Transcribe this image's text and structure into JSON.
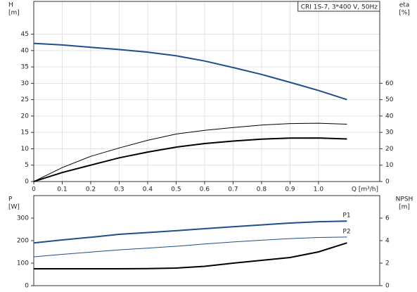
{
  "chart_data": [
    {
      "type": "line",
      "title": "CRI 1S-7, 3*400 V, 50Hz",
      "ylabel": [
        "H",
        "[m]"
      ],
      "y2label": [
        "eta",
        "[%]"
      ],
      "xlabel": "Q [m³/h]",
      "x": [
        0,
        0.1,
        0.2,
        0.3,
        0.4,
        0.5,
        0.6,
        0.7,
        0.8,
        0.9,
        1.0,
        1.1
      ],
      "xlim": [
        0,
        1.215
      ],
      "xticks": [
        0,
        0.1,
        0.2,
        0.3,
        0.4,
        0.5,
        0.6,
        0.7,
        0.8,
        0.9,
        {
          "value": 1,
          "label": "1.0"
        }
      ],
      "ylim": [
        0,
        55
      ],
      "yticks": [
        0,
        5,
        10,
        15,
        20,
        25,
        30,
        35,
        40,
        45
      ],
      "y2lim": [
        0,
        110
      ],
      "y2ticks": [
        0,
        10,
        20,
        30,
        40,
        50,
        60
      ],
      "grid": true,
      "series": [
        {
          "color": "#1f4e8c",
          "line_width": 2,
          "values": [
            42.2,
            41.7,
            41.0,
            40.3,
            39.5,
            38.4,
            36.8,
            34.8,
            32.7,
            30.3,
            27.8,
            25
          ]
        },
        {
          "color": "#000000",
          "line_width": 1,
          "axis": "y2",
          "values": [
            0,
            8.5,
            15.4,
            20.5,
            25.2,
            29,
            31.3,
            33,
            34.5,
            35.4,
            35.6,
            35
          ]
        },
        {
          "color": "#000000",
          "line_width": 2,
          "axis": "y2",
          "values": [
            0,
            5.5,
            10,
            14.5,
            18,
            21,
            23.2,
            24.7,
            25.9,
            26.5,
            26.6,
            26
          ]
        }
      ]
    },
    {
      "type": "line",
      "ylabel": [
        "P",
        "[W]"
      ],
      "y2label": [
        "NPSH",
        "[m]"
      ],
      "x": [
        0,
        0.1,
        0.2,
        0.3,
        0.4,
        0.5,
        0.6,
        0.7,
        0.8,
        0.9,
        1.0,
        1.1
      ],
      "xlim": [
        0,
        1.215
      ],
      "ylim": [
        0,
        400
      ],
      "yticks": [
        0,
        100,
        200,
        300
      ],
      "y2lim": [
        0,
        8
      ],
      "y2ticks": [
        0,
        2,
        4,
        6
      ],
      "series": [
        {
          "name": "P1",
          "color": "#1f4e8c",
          "line_width": 2,
          "values": [
            190,
            203,
            215,
            228,
            236,
            244,
            253,
            262,
            270,
            278,
            284,
            287
          ]
        },
        {
          "name": "P2",
          "color": "#1f4e8c",
          "line_width": 1,
          "values": [
            128,
            139,
            149,
            159,
            167,
            175,
            185,
            194,
            202,
            209,
            214,
            216
          ]
        },
        {
          "color": "#000000",
          "line_width": 2,
          "axis": "y2",
          "values": [
            1.5,
            1.5,
            1.5,
            1.5,
            1.52,
            1.56,
            1.72,
            2.0,
            2.25,
            2.5,
            3.0,
            3.8
          ]
        }
      ]
    }
  ]
}
